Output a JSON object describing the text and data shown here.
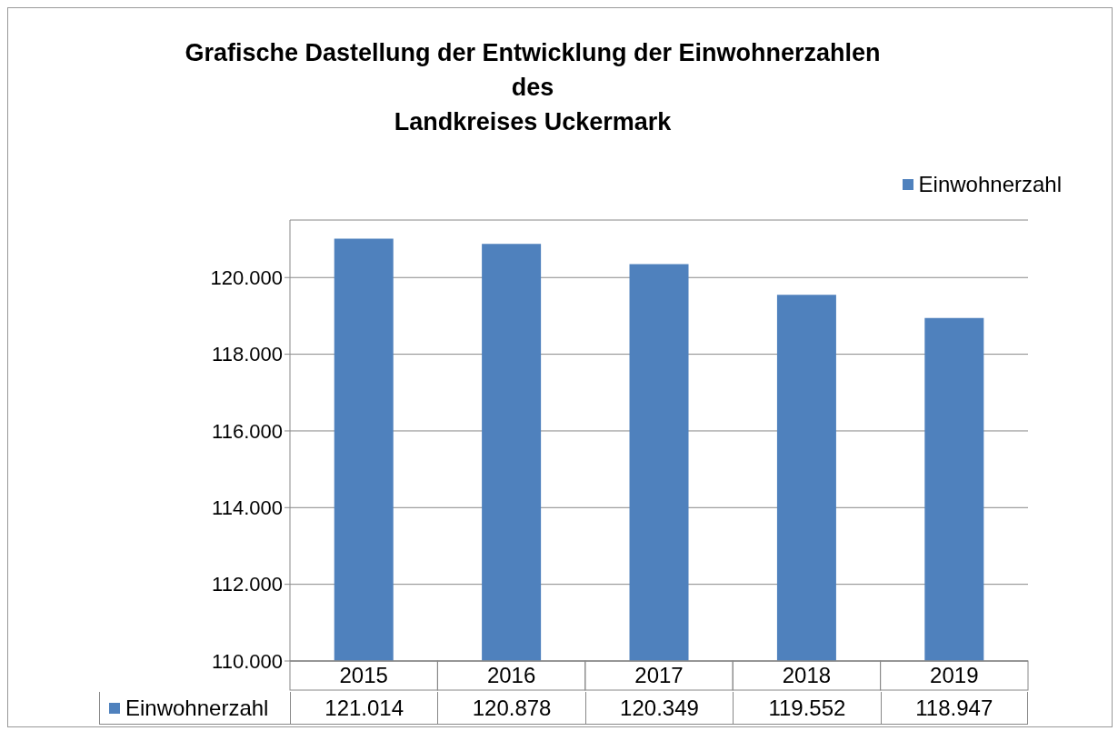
{
  "chart_data": {
    "type": "bar",
    "title": "Grafische Dastellung der Entwicklung der Einwohnerzahlen\ndes\nLandkreises Uckermark",
    "categories": [
      "2015",
      "2016",
      "2017",
      "2018",
      "2019"
    ],
    "series": [
      {
        "name": "Einwohnerzahl",
        "color": "#4f81bd",
        "values": [
          121014,
          120878,
          120349,
          119552,
          118947
        ],
        "value_labels": [
          "121.014",
          "120.878",
          "120.349",
          "119.552",
          "118.947"
        ]
      }
    ],
    "ylim": [
      110000,
      121500
    ],
    "yticks": [
      {
        "value": 110000,
        "label": "110.000"
      },
      {
        "value": 112000,
        "label": "112.000"
      },
      {
        "value": 114000,
        "label": "114.000"
      },
      {
        "value": 116000,
        "label": "116.000"
      },
      {
        "value": 118000,
        "label": "118.000"
      },
      {
        "value": 120000,
        "label": "120.000"
      }
    ],
    "grid": "y",
    "legend": "top right"
  }
}
